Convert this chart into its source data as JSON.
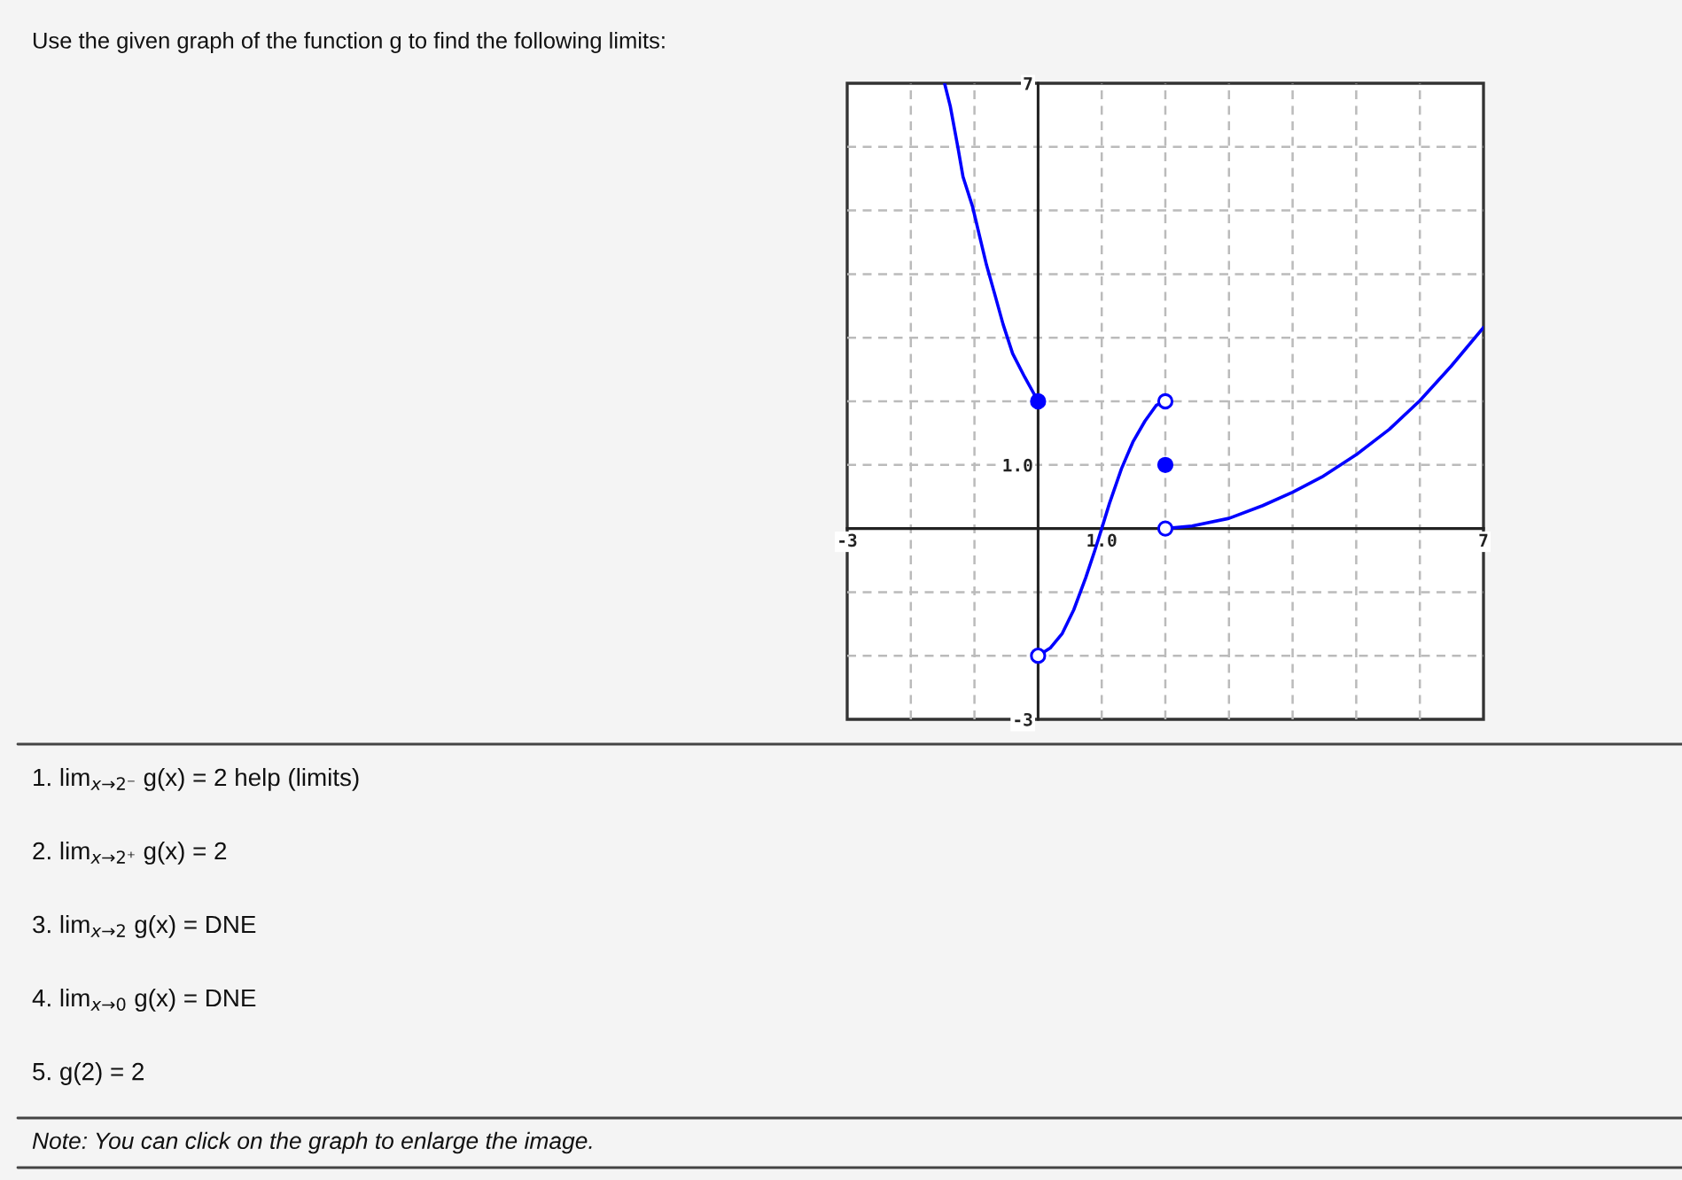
{
  "chart_data": {
    "type": "line",
    "title": "Use the given graph of the function g to find the following limits:",
    "annotations": [
      "1. lim$_{x→2⁻}$ g(x) = 2 help (limits)",
      "2. lim$_{x→2⁺}$ g(x) = 2",
      "3. lim$_{x→2}$ g(x) = DNE",
      "4. lim$_{x→0}$ g(x) = DNE",
      "5. g(2) = 2",
      "Note: You can click on the graph to enlarge the image."
    ],
    "xlim": [
      -3,
      7
    ],
    "ylim": [
      -3,
      7
    ],
    "xticks": [
      -3,
      {
        "value": -2,
        "label": null
      },
      {
        "value": -1,
        "label": null
      },
      {
        "value": 0,
        "label": null
      },
      {
        "value": 1,
        "label": "1.0"
      },
      {
        "value": 2,
        "label": null
      },
      {
        "value": 3,
        "label": null
      },
      {
        "value": 4,
        "label": null
      },
      {
        "value": 5,
        "label": null
      },
      {
        "value": 6,
        "label": null
      },
      7
    ],
    "yticks": [
      -3,
      {
        "value": -2,
        "label": null
      },
      {
        "value": -1,
        "label": null
      },
      {
        "value": 0,
        "label": null
      },
      {
        "value": 1,
        "label": "1.0"
      },
      {
        "value": 2,
        "label": null
      },
      {
        "value": 3,
        "label": null
      },
      {
        "value": 4,
        "label": null
      },
      {
        "value": 5,
        "label": null
      },
      {
        "value": 6,
        "label": null
      },
      7
    ],
    "grid": true,
    "series": [
      {
        "type": "line",
        "color": "#0000ff",
        "x": [
          -1.47,
          -1.38,
          -1.26,
          -1.18,
          -1.03,
          -0.92,
          -0.81,
          -0.68,
          -0.55,
          -0.4,
          -0.21,
          0
        ],
        "values": [
          7,
          6.64,
          5.99,
          5.53,
          5.06,
          4.6,
          4.14,
          3.68,
          3.21,
          2.75,
          2.38,
          2
        ]
      },
      {
        "type": "line",
        "color": "#0000ff",
        "x": [
          0,
          0.19,
          0.38,
          0.56,
          0.75,
          0.89,
          1.0,
          1.12,
          1.31,
          1.49,
          1.68,
          1.86,
          2
        ],
        "values": [
          -2,
          -1.88,
          -1.65,
          -1.28,
          -0.77,
          -0.35,
          0,
          0.39,
          0.94,
          1.36,
          1.69,
          1.94,
          2
        ]
      },
      {
        "type": "line",
        "color": "#0000ff",
        "x": [
          2,
          2.42,
          3,
          3.53,
          4,
          4.46,
          5,
          5.52,
          6,
          6.49,
          7
        ],
        "values": [
          0,
          0.04,
          0.16,
          0.36,
          0.57,
          0.81,
          1.16,
          1.56,
          2.01,
          2.55,
          3.16
        ]
      },
      {
        "type": "scatter",
        "marker": "circle",
        "color": "#0000ff",
        "x": [
          0,
          2
        ],
        "values": [
          2,
          1
        ]
      },
      {
        "type": "scatter",
        "marker": "circle",
        "color": "#0000ff",
        "colors": [
          "#ffffff",
          "#ffffff",
          "#ffffff"
        ],
        "x": [
          0,
          2,
          2
        ],
        "values": [
          -2,
          2,
          0
        ]
      }
    ]
  }
}
